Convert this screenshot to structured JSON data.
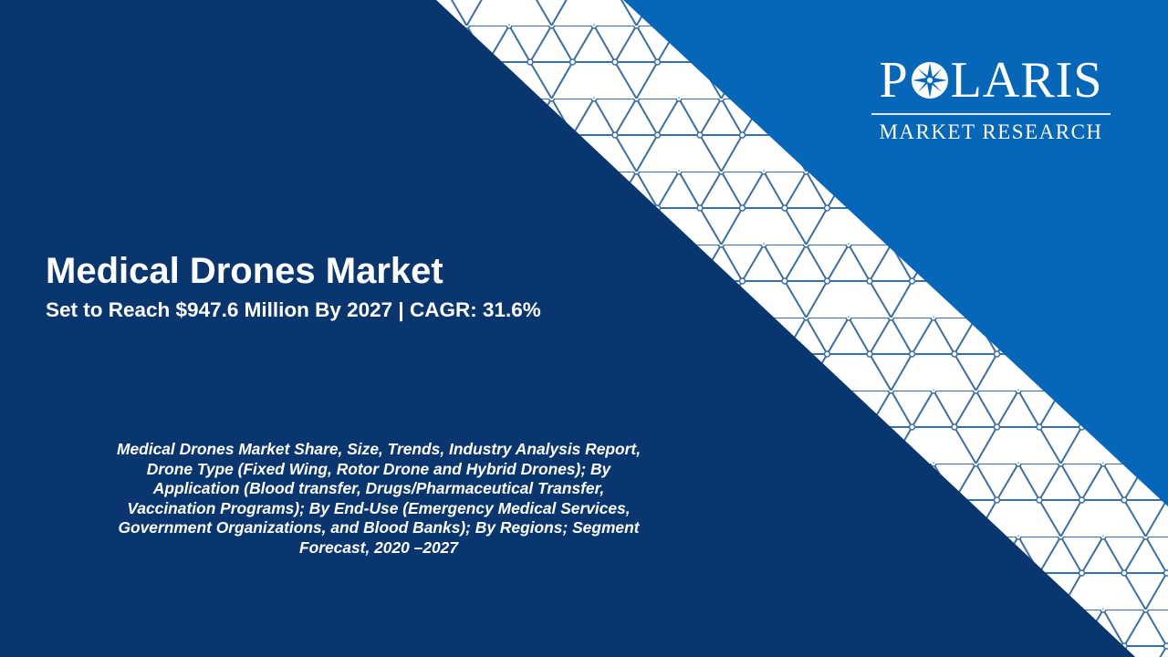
{
  "colors": {
    "navy": "#0a3670",
    "brand_blue": "#0667b9",
    "band_white": "#ffffff",
    "pattern_line": "#3b6ea6"
  },
  "logo": {
    "word": "POLARIS",
    "word_before_icon": "P",
    "word_after_icon": "LARIS",
    "icon": "compass-star-icon",
    "subtitle": "MARKET RESEARCH"
  },
  "title": "Medical Drones Market",
  "subtitle": "Set to Reach $947.6 Million By 2027 | CAGR: 31.6%",
  "description_lines": [
    "Medical Drones Market Share, Size, Trends, Industry Analysis Report,",
    "Drone Type (Fixed Wing, Rotor Drone and Hybrid Drones); By",
    "Application (Blood transfer, Drugs/Pharmaceutical Transfer,",
    "Vaccination Programs); By End-Use (Emergency Medical Services,",
    "Government Organizations, and Blood Banks); By Regions; Segment",
    "Forecast, 2020 –2027"
  ]
}
